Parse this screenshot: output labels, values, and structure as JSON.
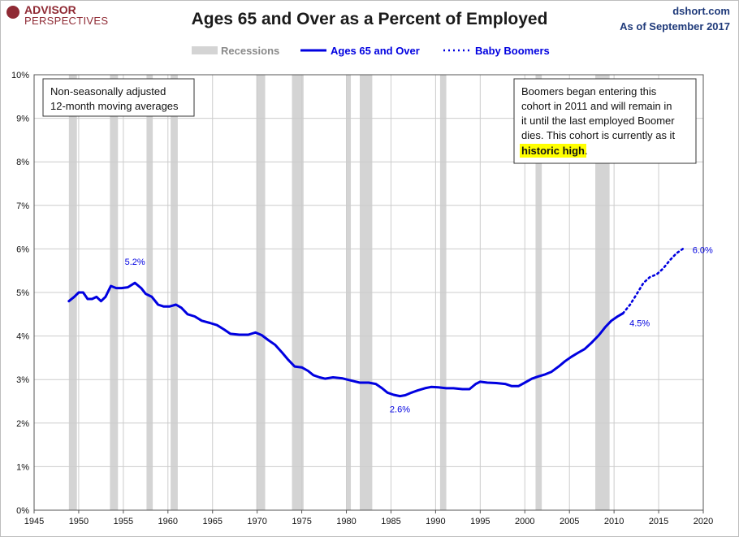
{
  "header": {
    "logo_line1": "ADVISOR",
    "logo_line2": "PERSPECTIVES",
    "title": "Ages 65 and Over as a Percent of Employed",
    "source": "dshort.com",
    "as_of": "As of September 2017"
  },
  "colors": {
    "series": "#0000e0",
    "recession": "#d4d4d4",
    "grid": "#cccccc",
    "highlight": "#ffff00",
    "text_blue": "#1f3a7a"
  },
  "notes": {
    "left_box": [
      "Non-seasonally adjusted",
      "12-month moving averages"
    ],
    "right_box": {
      "lines": [
        "Boomers began entering this",
        "cohort in 2011  and will remain in",
        "it until the last employed Boomer",
        "dies. This cohort is currently as it"
      ],
      "highlight": "historic high",
      "after_highlight": "."
    }
  },
  "chart_data": {
    "type": "line",
    "legend": [
      {
        "label": "Recessions",
        "style": "band"
      },
      {
        "label": "Ages 65 and Over",
        "style": "solid"
      },
      {
        "label": "Baby Boomers",
        "style": "dotted"
      }
    ],
    "xlim": [
      1945,
      2020
    ],
    "ylim": [
      0,
      10
    ],
    "x_ticks": [
      "1945",
      "1950",
      "1955",
      "1960",
      "1965",
      "1970",
      "1975",
      "1980",
      "1985",
      "1990",
      "1995",
      "2000",
      "2005",
      "2010",
      "2015",
      "2020"
    ],
    "y_ticks": [
      "0%",
      "1%",
      "2%",
      "3%",
      "4%",
      "5%",
      "6%",
      "7%",
      "8%",
      "9%",
      "10%"
    ],
    "grid": true,
    "recessions": [
      [
        1948.9,
        1949.8
      ],
      [
        1953.5,
        1954.4
      ],
      [
        1957.6,
        1958.3
      ],
      [
        1960.3,
        1961.1
      ],
      [
        1969.9,
        1970.9
      ],
      [
        1973.9,
        1975.2
      ],
      [
        1980.0,
        1980.5
      ],
      [
        1981.5,
        1982.9
      ],
      [
        1990.5,
        1991.2
      ],
      [
        2001.2,
        2001.9
      ],
      [
        2007.9,
        2009.5
      ]
    ],
    "series": [
      {
        "name": "Ages 65 and Over",
        "style": "solid",
        "points": [
          [
            1948.9,
            4.8
          ],
          [
            1949.5,
            4.9
          ],
          [
            1950.0,
            5.0
          ],
          [
            1950.5,
            5.0
          ],
          [
            1951.0,
            4.85
          ],
          [
            1951.5,
            4.85
          ],
          [
            1952.0,
            4.9
          ],
          [
            1952.5,
            4.8
          ],
          [
            1953.0,
            4.9
          ],
          [
            1953.6,
            5.15
          ],
          [
            1954.2,
            5.1
          ],
          [
            1954.8,
            5.1
          ],
          [
            1955.5,
            5.12
          ],
          [
            1956.3,
            5.22
          ],
          [
            1957.0,
            5.1
          ],
          [
            1957.5,
            4.97
          ],
          [
            1958.2,
            4.9
          ],
          [
            1958.9,
            4.72
          ],
          [
            1959.5,
            4.68
          ],
          [
            1960.2,
            4.68
          ],
          [
            1960.9,
            4.72
          ],
          [
            1961.5,
            4.65
          ],
          [
            1962.2,
            4.5
          ],
          [
            1963.0,
            4.45
          ],
          [
            1963.8,
            4.35
          ],
          [
            1964.7,
            4.3
          ],
          [
            1965.5,
            4.25
          ],
          [
            1966.3,
            4.15
          ],
          [
            1967.0,
            4.05
          ],
          [
            1968.0,
            4.03
          ],
          [
            1969.0,
            4.03
          ],
          [
            1969.8,
            4.08
          ],
          [
            1970.5,
            4.02
          ],
          [
            1971.3,
            3.9
          ],
          [
            1972.0,
            3.8
          ],
          [
            1972.8,
            3.62
          ],
          [
            1973.5,
            3.45
          ],
          [
            1974.2,
            3.3
          ],
          [
            1975.0,
            3.28
          ],
          [
            1975.7,
            3.2
          ],
          [
            1976.3,
            3.1
          ],
          [
            1977.0,
            3.05
          ],
          [
            1977.6,
            3.02
          ],
          [
            1978.5,
            3.05
          ],
          [
            1979.5,
            3.03
          ],
          [
            1980.5,
            2.98
          ],
          [
            1981.5,
            2.93
          ],
          [
            1982.5,
            2.93
          ],
          [
            1983.3,
            2.9
          ],
          [
            1984.0,
            2.8
          ],
          [
            1984.6,
            2.7
          ],
          [
            1985.3,
            2.65
          ],
          [
            1986.0,
            2.62
          ],
          [
            1986.6,
            2.64
          ],
          [
            1987.3,
            2.7
          ],
          [
            1988.0,
            2.75
          ],
          [
            1988.8,
            2.8
          ],
          [
            1989.5,
            2.83
          ],
          [
            1990.3,
            2.82
          ],
          [
            1991.2,
            2.8
          ],
          [
            1992.0,
            2.8
          ],
          [
            1993.0,
            2.78
          ],
          [
            1993.8,
            2.78
          ],
          [
            1994.5,
            2.9
          ],
          [
            1995.0,
            2.95
          ],
          [
            1995.8,
            2.93
          ],
          [
            1996.8,
            2.92
          ],
          [
            1997.8,
            2.9
          ],
          [
            1998.5,
            2.85
          ],
          [
            1999.3,
            2.85
          ],
          [
            2000.0,
            2.93
          ],
          [
            2000.8,
            3.02
          ],
          [
            2001.5,
            3.07
          ],
          [
            2002.3,
            3.12
          ],
          [
            2003.0,
            3.18
          ],
          [
            2003.8,
            3.3
          ],
          [
            2004.5,
            3.42
          ],
          [
            2005.2,
            3.52
          ],
          [
            2006.0,
            3.62
          ],
          [
            2006.7,
            3.7
          ],
          [
            2007.5,
            3.85
          ],
          [
            2008.3,
            4.02
          ],
          [
            2009.0,
            4.2
          ],
          [
            2009.7,
            4.35
          ],
          [
            2010.4,
            4.45
          ],
          [
            2011.0,
            4.52
          ]
        ]
      },
      {
        "name": "Baby Boomers",
        "style": "dotted",
        "points": [
          [
            2011.0,
            4.52
          ],
          [
            2011.8,
            4.72
          ],
          [
            2012.5,
            4.95
          ],
          [
            2013.3,
            5.22
          ],
          [
            2014.0,
            5.35
          ],
          [
            2014.8,
            5.42
          ],
          [
            2015.5,
            5.55
          ],
          [
            2016.3,
            5.75
          ],
          [
            2017.0,
            5.9
          ],
          [
            2017.7,
            6.0
          ]
        ]
      }
    ],
    "annotations": [
      {
        "text": "5.2%",
        "x": 1956.3,
        "y": 5.22
      },
      {
        "text": "2.6%",
        "x": 1986.0,
        "y": 2.62
      },
      {
        "text": "4.5%",
        "x": 2011.0,
        "y": 4.52
      },
      {
        "text": "6.0%",
        "x": 2017.7,
        "y": 6.0
      }
    ]
  }
}
